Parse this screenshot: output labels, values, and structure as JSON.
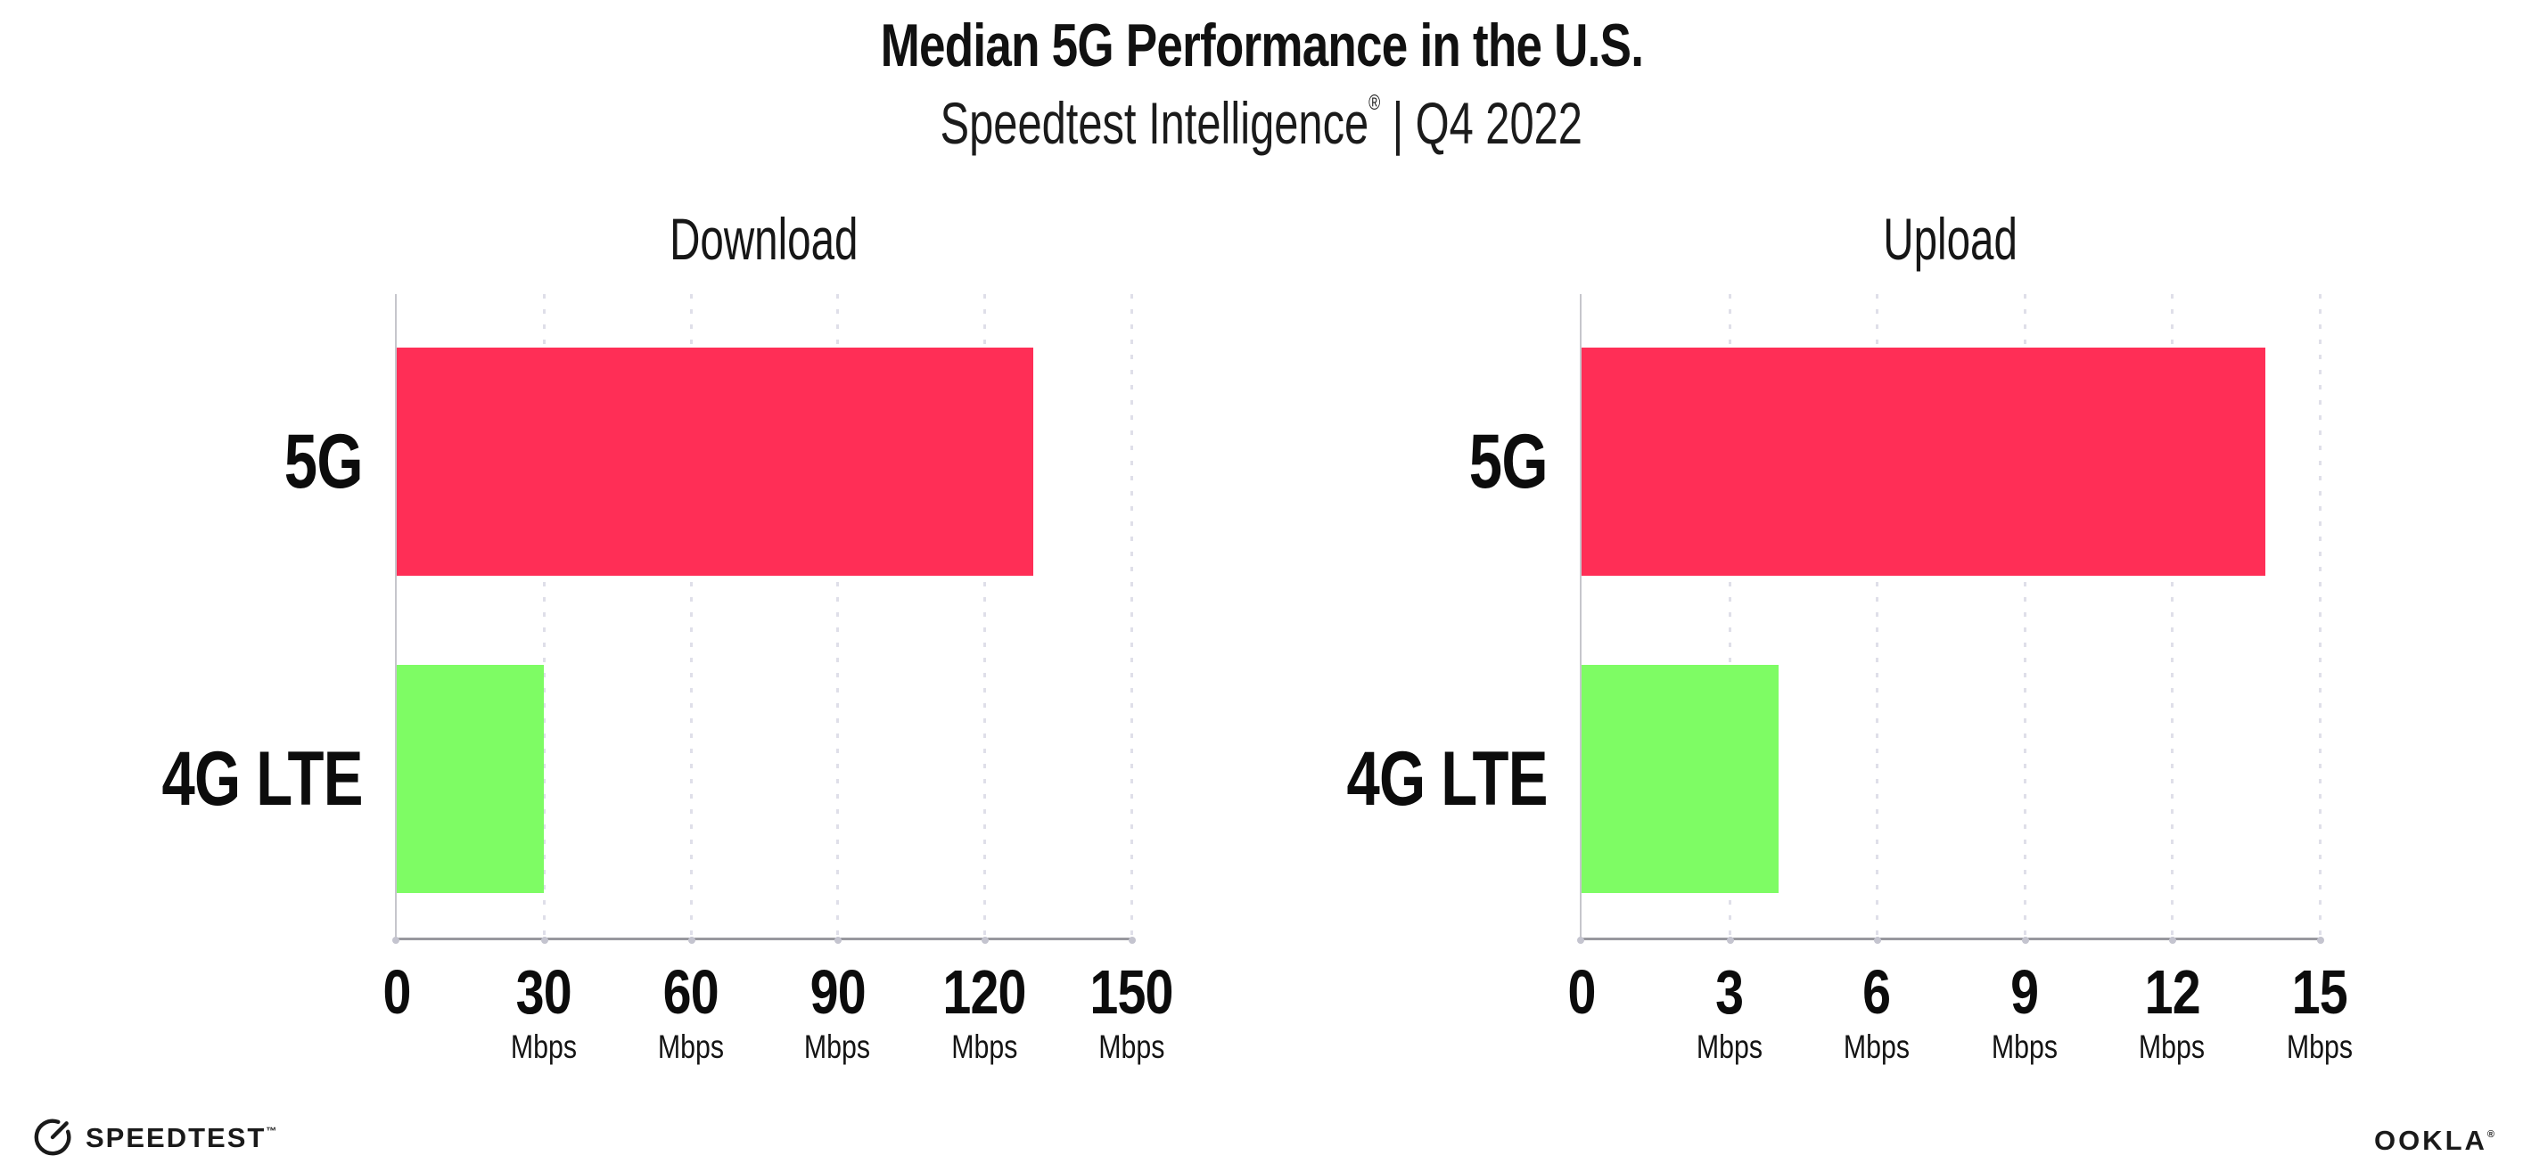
{
  "header": {
    "title": "Median 5G Performance in the U.S.",
    "subtitle": {
      "brand": "Speedtest Intelligence",
      "registered": "®",
      "separator": "|",
      "period": "Q4 2022"
    }
  },
  "chart_data": [
    {
      "type": "bar",
      "orientation": "horizontal",
      "title": "Download",
      "categories": [
        "5G",
        "4G LTE"
      ],
      "values": [
        130,
        30
      ],
      "unit": "Mbps",
      "xlim": [
        0,
        150
      ],
      "xticks": [
        0,
        30,
        60,
        90,
        120,
        150
      ],
      "xtick_unit": "Mbps",
      "grid": "vertical-dotted",
      "legend": "none"
    },
    {
      "type": "bar",
      "orientation": "horizontal",
      "title": "Upload",
      "categories": [
        "5G",
        "4G LTE"
      ],
      "values": [
        13.9,
        4
      ],
      "unit": "Mbps",
      "xlim": [
        0,
        15
      ],
      "xticks": [
        0,
        3,
        6,
        9,
        12,
        15
      ],
      "xtick_unit": "Mbps",
      "grid": "vertical-dotted",
      "legend": "none"
    }
  ],
  "footer": {
    "speedtest": {
      "label": "SPEEDTEST",
      "trademark": "™",
      "icon": "gauge-icon"
    },
    "ookla": {
      "label": "OOKLA",
      "registered": "®"
    }
  },
  "colors": {
    "bar_5g": "#ff2e56",
    "bar_4g_lte": "#7efc64",
    "axis_line": "#98989e",
    "y_axis_line": "#c6c6cc",
    "gridline": "#dfdfe9",
    "text": "#141414",
    "background": "#ffffff"
  }
}
